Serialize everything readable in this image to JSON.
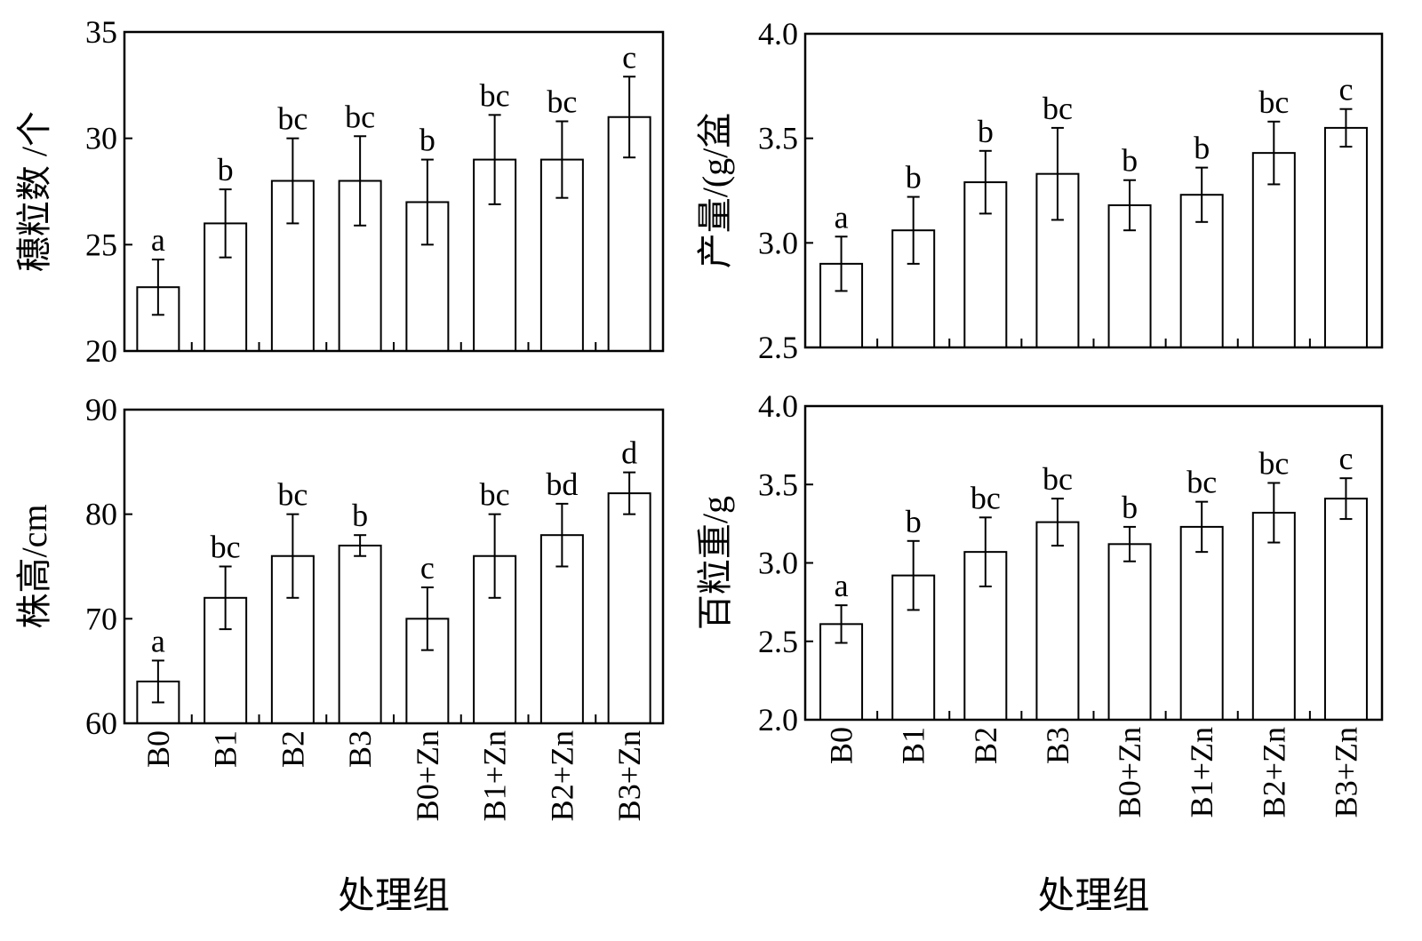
{
  "chart_data": [
    {
      "type": "bar",
      "ylabel": "穗粒数 /个",
      "xlabel": "",
      "ylim": [
        20,
        35
      ],
      "yticks": [
        20,
        25,
        30,
        35
      ],
      "categories": [
        "B0",
        "B1",
        "B2",
        "B3",
        "B0+Zn",
        "B1+Zn",
        "B2+Zn",
        "B3+Zn"
      ],
      "values": [
        23,
        26,
        28,
        28,
        27,
        29,
        29,
        31
      ],
      "errors": [
        1.3,
        1.6,
        2.0,
        2.1,
        2.0,
        2.1,
        1.8,
        1.9
      ],
      "significance": [
        "a",
        "b",
        "bc",
        "bc",
        "b",
        "bc",
        "bc",
        "c"
      ],
      "show_category_labels": false
    },
    {
      "type": "bar",
      "ylabel": "产量/(g/盆",
      "xlabel": "",
      "ylim": [
        2.5,
        4.0
      ],
      "yticks": [
        2.5,
        3.0,
        3.5,
        4.0
      ],
      "categories": [
        "B0",
        "B1",
        "B2",
        "B3",
        "B0+Zn",
        "B1+Zn",
        "B2+Zn",
        "B3+Zn"
      ],
      "values": [
        2.9,
        3.06,
        3.29,
        3.33,
        3.18,
        3.23,
        3.43,
        3.55
      ],
      "errors": [
        0.13,
        0.16,
        0.15,
        0.22,
        0.12,
        0.13,
        0.15,
        0.09
      ],
      "significance": [
        "a",
        "b",
        "b",
        "bc",
        "b",
        "b",
        "bc",
        "c"
      ],
      "show_category_labels": false
    },
    {
      "type": "bar",
      "ylabel": "株高/cm",
      "xlabel": "处理组",
      "ylim": [
        60,
        90
      ],
      "yticks": [
        60,
        70,
        80,
        90
      ],
      "categories": [
        "B0",
        "B1",
        "B2",
        "B3",
        "B0+Zn",
        "B1+Zn",
        "B2+Zn",
        "B3+Zn"
      ],
      "values": [
        64,
        72,
        76,
        77,
        70,
        76,
        78,
        82
      ],
      "errors": [
        2,
        3,
        4,
        1,
        3,
        4,
        3,
        2
      ],
      "significance": [
        "a",
        "bc",
        "bc",
        "b",
        "c",
        "bc",
        "bd",
        "d"
      ],
      "show_category_labels": true
    },
    {
      "type": "bar",
      "ylabel": "百粒重/g",
      "xlabel": "处理组",
      "ylim": [
        2.0,
        4.0
      ],
      "yticks": [
        2.0,
        2.5,
        3.0,
        3.5,
        4.0
      ],
      "categories": [
        "B0",
        "B1",
        "B2",
        "B3",
        "B0+Zn",
        "B1+Zn",
        "B2+Zn",
        "B3+Zn"
      ],
      "values": [
        2.61,
        2.92,
        3.07,
        3.26,
        3.12,
        3.23,
        3.32,
        3.41
      ],
      "errors": [
        0.12,
        0.22,
        0.22,
        0.15,
        0.11,
        0.16,
        0.19,
        0.13
      ],
      "significance": [
        "a",
        "b",
        "bc",
        "bc",
        "b",
        "bc",
        "bc",
        "c"
      ],
      "show_category_labels": true
    }
  ]
}
